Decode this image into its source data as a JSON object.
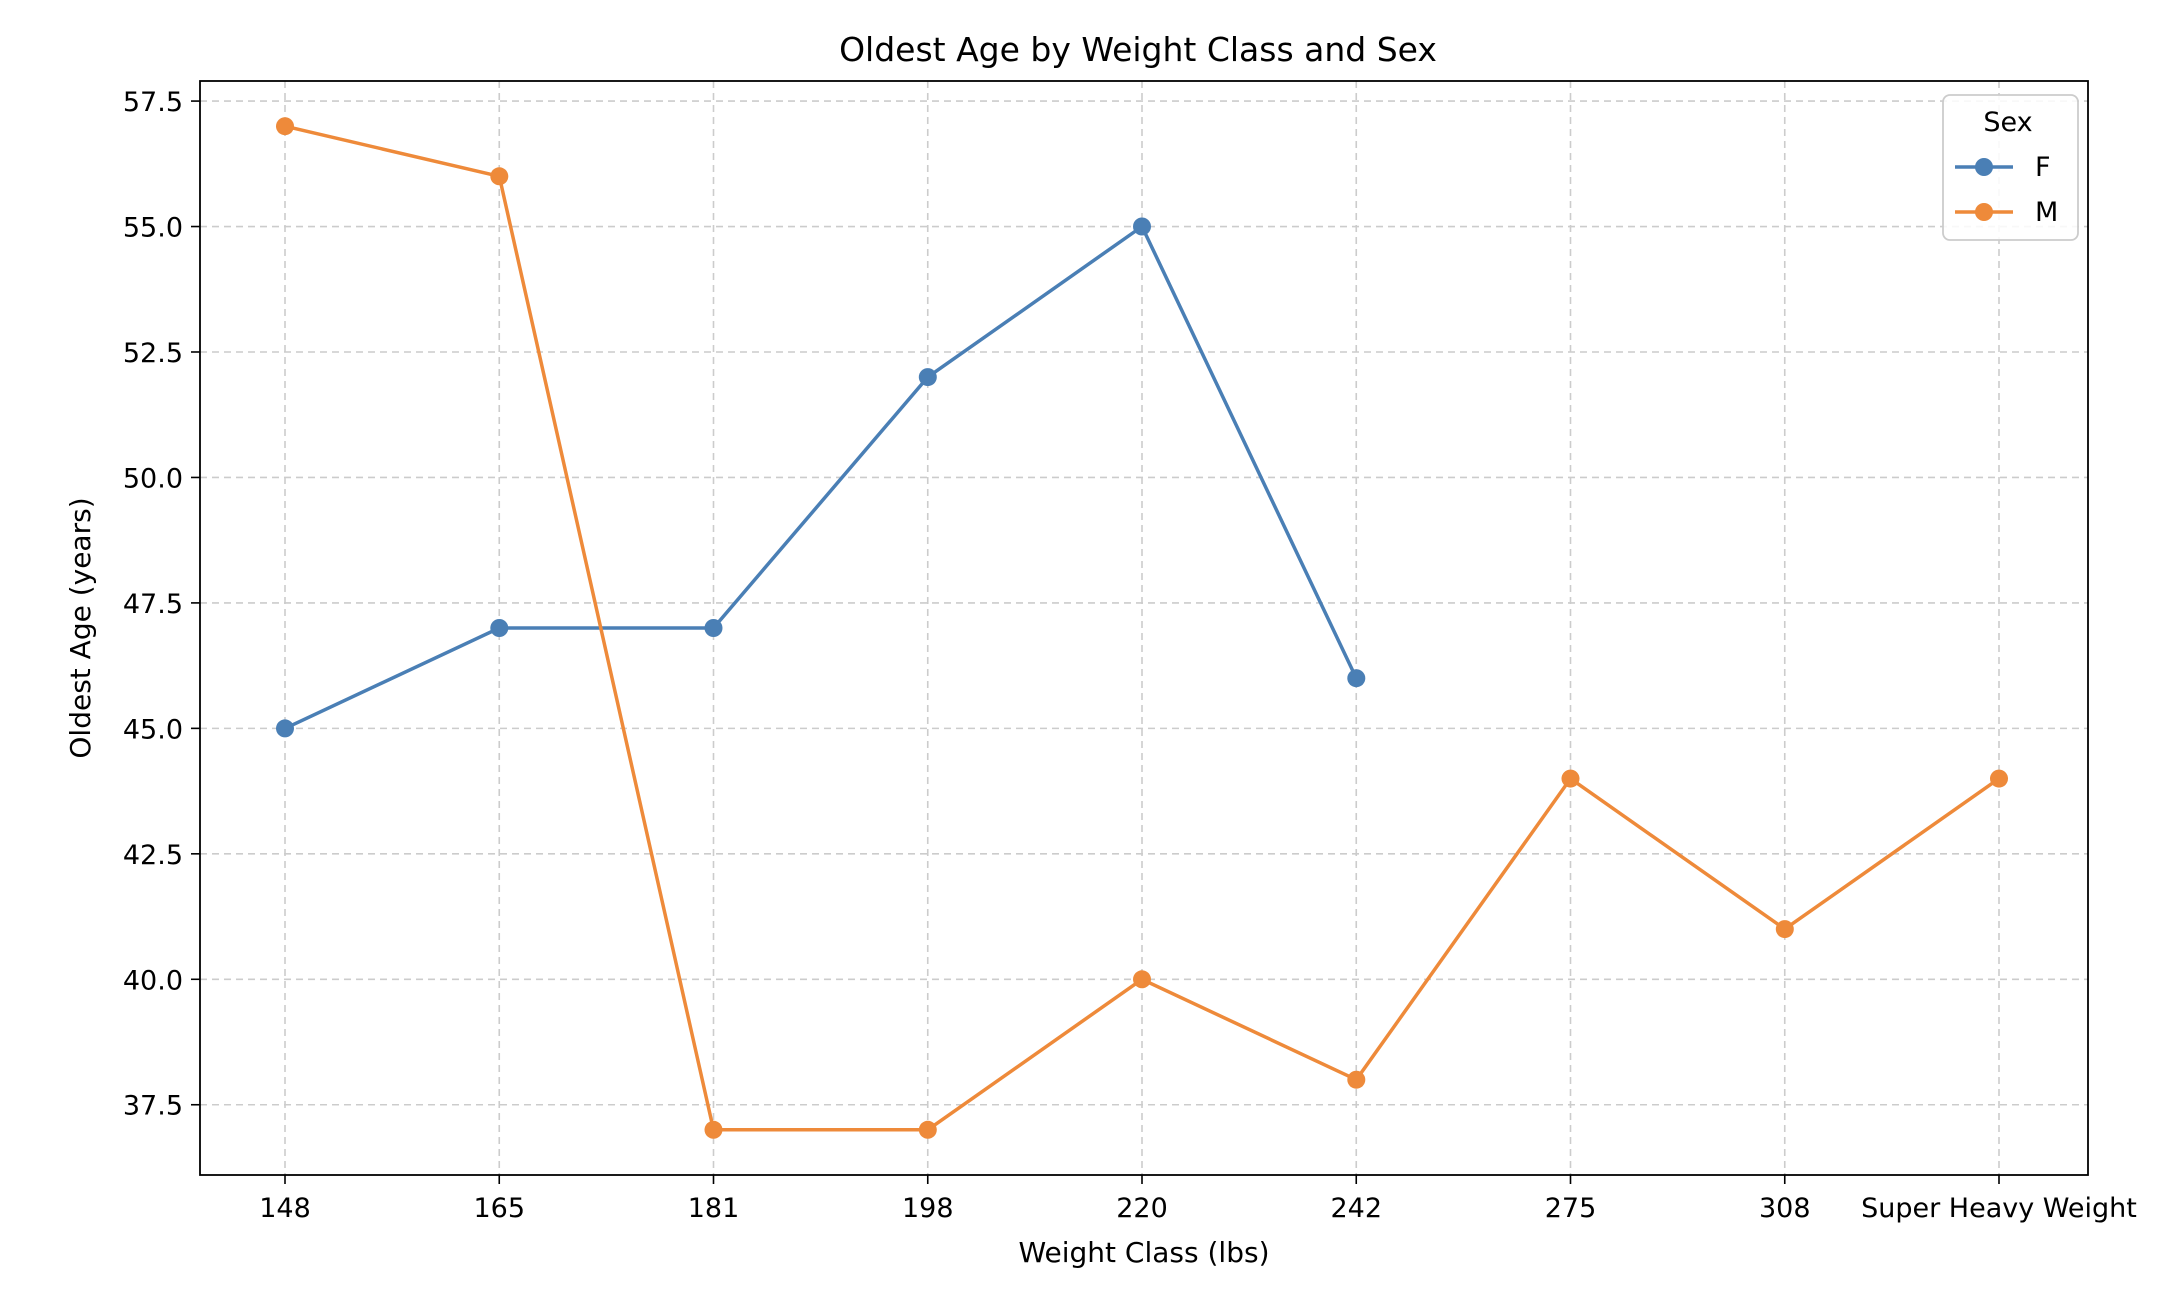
{
  "chart_data": {
    "type": "line",
    "title": "Oldest Age by Weight Class and Sex",
    "xlabel": "Weight Class (lbs)",
    "ylabel": "Oldest Age (years)",
    "categories": [
      "148",
      "165",
      "181",
      "198",
      "220",
      "242",
      "275",
      "308",
      "Super Heavy Weight"
    ],
    "ylim": [
      36.1,
      57.9
    ],
    "yticks": [
      37.5,
      40.0,
      42.5,
      45.0,
      47.5,
      50.0,
      52.5,
      55.0,
      57.5
    ],
    "ytick_labels": [
      "37.5",
      "40.0",
      "42.5",
      "45.0",
      "47.5",
      "50.0",
      "52.5",
      "55.0",
      "57.5"
    ],
    "grid": true,
    "legend": {
      "title": "Sex",
      "position": "top-right"
    },
    "series": [
      {
        "name": "F",
        "color": "#4a7fb5",
        "values": [
          45,
          47,
          47,
          52,
          55,
          46,
          null,
          null,
          null
        ]
      },
      {
        "name": "M",
        "color": "#ee8a3a",
        "values": [
          57,
          56,
          37,
          37,
          40,
          38,
          44,
          41,
          44
        ]
      }
    ]
  }
}
